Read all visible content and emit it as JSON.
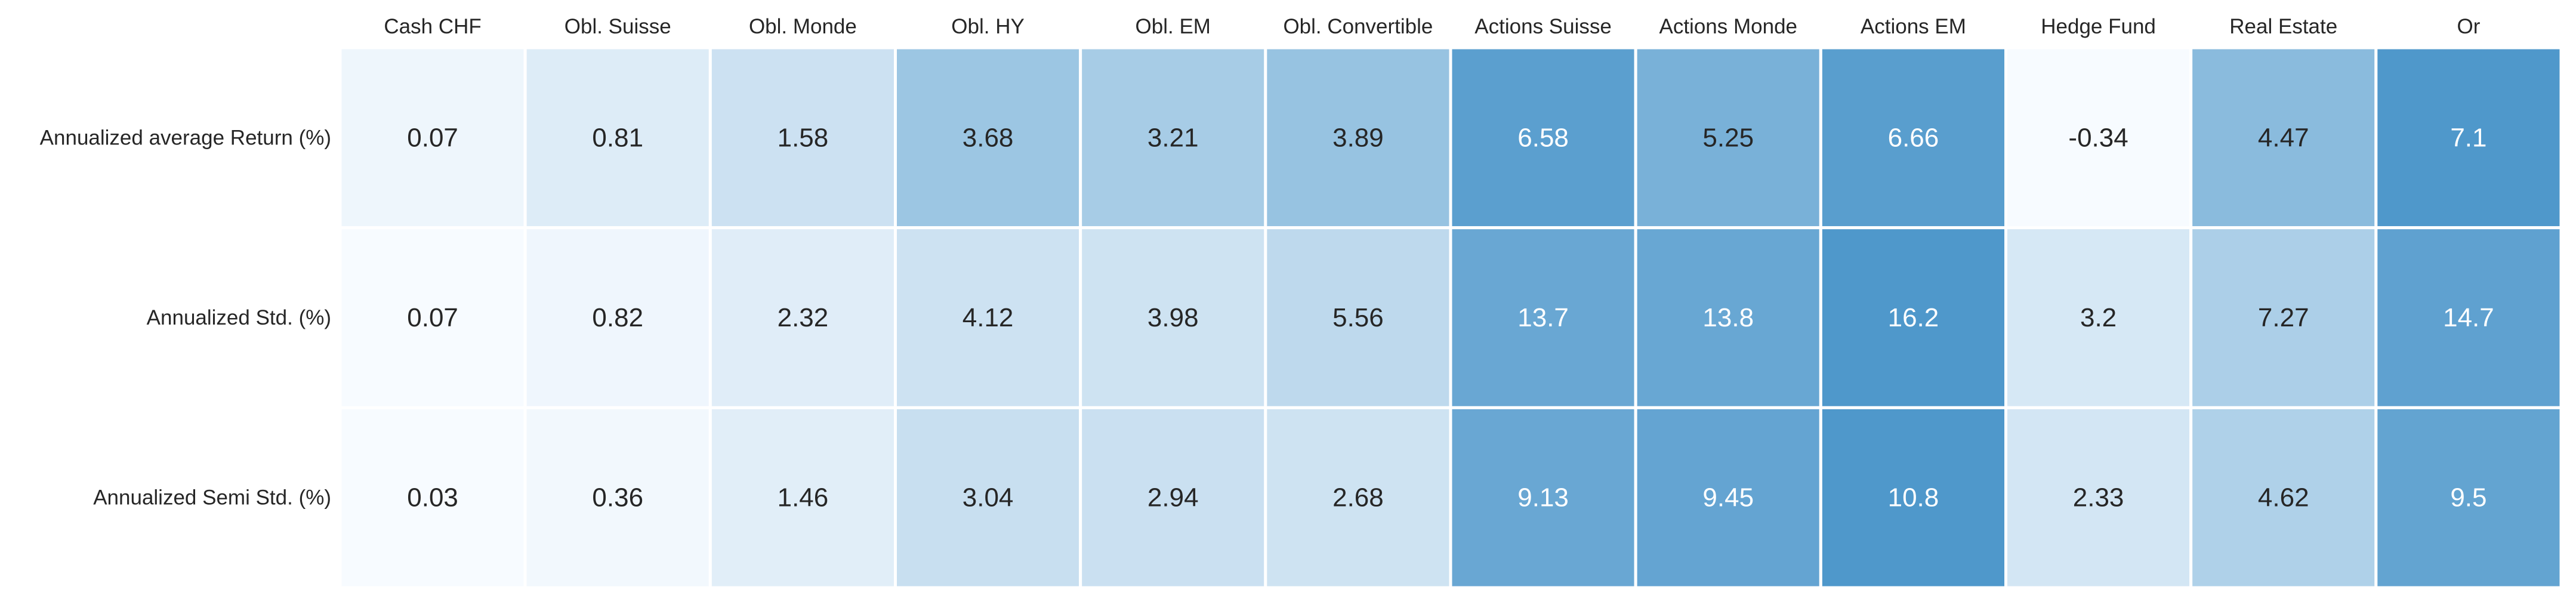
{
  "chart_data": {
    "type": "heatmap",
    "title": "",
    "xlabel": "",
    "ylabel": "",
    "columns": [
      "Cash CHF",
      "Obl. Suisse",
      "Obl. Monde",
      "Obl. HY",
      "Obl. EM",
      "Obl. Convertible",
      "Actions Suisse",
      "Actions Monde",
      "Actions EM",
      "Hedge Fund",
      "Real Estate",
      "Or"
    ],
    "rows": [
      "Annualized average Return (%)",
      "Annualized Std. (%)",
      "Annualized Semi Std. (%)"
    ],
    "cell_labels": [
      [
        "0.07",
        "0.81",
        "1.58",
        "3.68",
        "3.21",
        "3.89",
        "6.58",
        "5.25",
        "6.66",
        "-0.34",
        "4.47",
        "7.1"
      ],
      [
        "0.07",
        "0.82",
        "2.32",
        "4.12",
        "3.98",
        "5.56",
        "13.7",
        "13.8",
        "16.2",
        "3.2",
        "7.27",
        "14.7"
      ],
      [
        "0.03",
        "0.36",
        "1.46",
        "3.04",
        "2.94",
        "2.68",
        "9.13",
        "9.45",
        "10.8",
        "2.33",
        "4.62",
        "9.5"
      ]
    ],
    "values": [
      [
        0.07,
        0.81,
        1.58,
        3.68,
        3.21,
        3.89,
        6.58,
        5.25,
        6.66,
        -0.34,
        4.47,
        7.1
      ],
      [
        0.07,
        0.82,
        2.32,
        4.12,
        3.98,
        5.56,
        13.7,
        13.8,
        16.2,
        3.2,
        7.27,
        14.7
      ],
      [
        0.03,
        0.36,
        1.46,
        3.04,
        2.94,
        2.68,
        9.13,
        9.45,
        10.8,
        2.33,
        4.62,
        9.5
      ]
    ],
    "colormap": "Blues",
    "normalization": "per-row",
    "colorbar": false,
    "grid": false,
    "colors": {
      "low": "#f7fbff",
      "high": "#4f98cb",
      "text_dark": "#262626",
      "text_light": "#ffffff",
      "separator": "#ffffff"
    }
  }
}
